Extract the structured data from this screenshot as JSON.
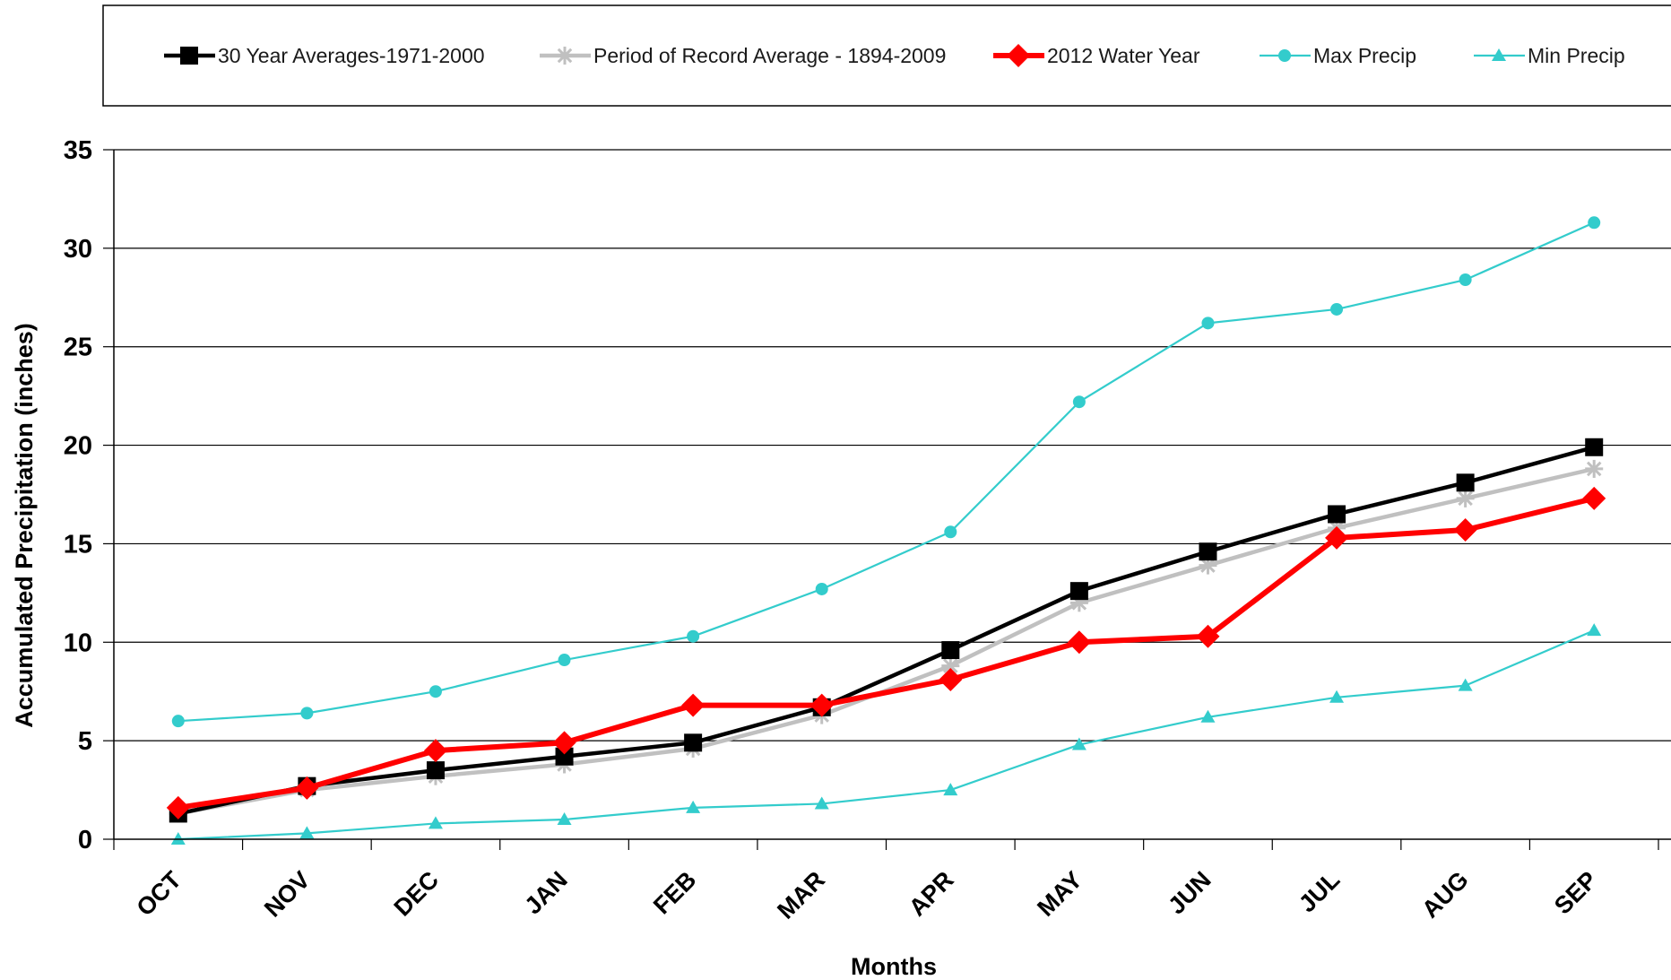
{
  "chart_data": {
    "type": "line",
    "title": "",
    "xlabel": "Months",
    "ylabel": "Accumulated Precipitation (inches)",
    "categories": [
      "OCT",
      "NOV",
      "DEC",
      "JAN",
      "FEB",
      "MAR",
      "APR",
      "MAY",
      "JUN",
      "JUL",
      "AUG",
      "SEP"
    ],
    "ylim": [
      0,
      35
    ],
    "yticks": [
      "0",
      "5",
      "10",
      "15",
      "20",
      "25",
      "30",
      "35"
    ],
    "grid": true,
    "legend_position": "top",
    "series": [
      {
        "name": "30 Year Averages-1971-2000",
        "color": "#000000",
        "marker": "square",
        "values": [
          1.3,
          2.7,
          3.5,
          4.2,
          4.9,
          6.7,
          9.6,
          12.6,
          14.6,
          16.5,
          18.1,
          19.9
        ]
      },
      {
        "name": "Period of Record Average - 1894-2009",
        "color": "#c0c0c0",
        "marker": "star",
        "values": [
          1.3,
          2.5,
          3.2,
          3.8,
          4.6,
          6.3,
          8.8,
          12.0,
          13.9,
          15.8,
          17.3,
          18.8
        ]
      },
      {
        "name": "2012 Water Year",
        "color": "#ff0000",
        "marker": "diamond",
        "values": [
          1.6,
          2.6,
          4.5,
          4.9,
          6.8,
          6.8,
          8.1,
          10.0,
          10.3,
          15.3,
          15.7,
          17.3
        ]
      },
      {
        "name": "Max Precip",
        "color": "#33cccc",
        "marker": "circle",
        "values": [
          6.0,
          6.4,
          7.5,
          9.1,
          10.3,
          12.7,
          15.6,
          22.2,
          26.2,
          26.9,
          28.4,
          31.3
        ]
      },
      {
        "name": "Min Precip",
        "color": "#33cccc",
        "marker": "triangle",
        "values": [
          0.0,
          0.3,
          0.8,
          1.0,
          1.6,
          1.8,
          2.5,
          4.8,
          6.2,
          7.2,
          7.8,
          10.6
        ]
      }
    ]
  }
}
